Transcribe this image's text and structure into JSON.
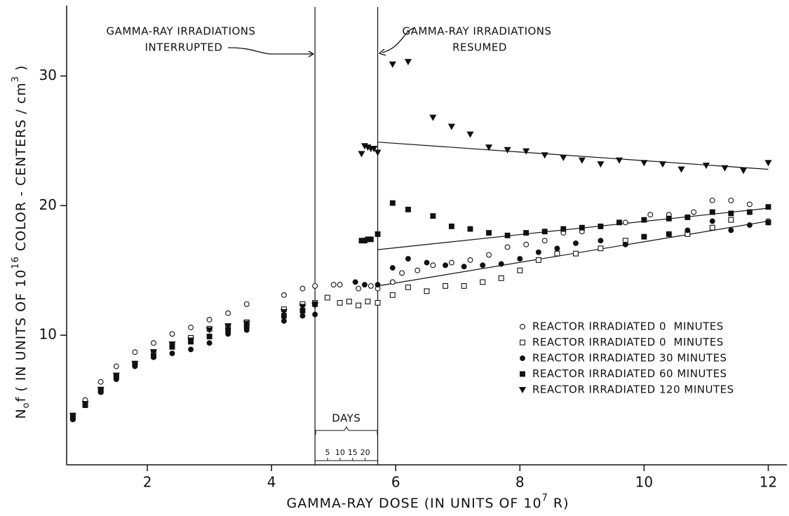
{
  "chart_data": {
    "type": "scatter",
    "xlabel": [
      "GAMMA-RAY DOSE (IN UNITS OF 10",
      "7",
      " R)"
    ],
    "ylabel": [
      "N",
      "o",
      "f ( IN UNITS OF 10",
      "16",
      " COLOR - CENTERS / cm",
      "3",
      " )"
    ],
    "xlim": [
      0.7,
      12.3
    ],
    "ylim": [
      0,
      35
    ],
    "xticks": [
      2,
      4,
      6,
      8,
      10,
      12
    ],
    "yticks": [
      10,
      20,
      30
    ],
    "vlines": [
      4.7,
      5.71
    ],
    "annotations": [
      [
        "GAMMA-RAY IRRADIATIONS",
        "INTERRUPTED"
      ],
      [
        "GAMMA-RAY IRRADIATIONS",
        "RESUMED"
      ]
    ],
    "days_axis": {
      "label": "DAYS",
      "lim": [
        0,
        25
      ],
      "ticks": [
        5,
        10,
        15,
        20
      ]
    },
    "legend": "center right",
    "series": [
      {
        "name": "REACTOR IRRADIATED 0  MINUTES",
        "marker": "open-circle",
        "color": "#111",
        "x": [
          0.8,
          1.0,
          1.25,
          1.5,
          1.8,
          2.1,
          2.4,
          2.7,
          3.0,
          3.3,
          3.6,
          4.2,
          4.5,
          4.7,
          5.0,
          5.1,
          5.4,
          5.6,
          5.71,
          5.95,
          6.1,
          6.35,
          6.6,
          6.9,
          7.2,
          7.5,
          7.8,
          8.1,
          8.4,
          8.7,
          9.0,
          9.3,
          9.7,
          10.1,
          10.4,
          10.8,
          11.1,
          11.4,
          11.7,
          12.0
        ],
        "values": [
          3.8,
          5.0,
          6.4,
          7.6,
          8.7,
          9.4,
          10.1,
          10.6,
          11.2,
          11.7,
          12.4,
          13.1,
          13.6,
          13.8,
          13.9,
          13.9,
          13.6,
          13.8,
          13.6,
          14.1,
          14.8,
          15.0,
          15.4,
          15.6,
          15.8,
          16.2,
          16.8,
          17.0,
          17.3,
          17.9,
          18.0,
          18.4,
          18.7,
          19.3,
          19.3,
          19.5,
          20.4,
          20.4,
          20.1,
          18.8
        ]
      },
      {
        "name": "REACTOR IRRADIATED 0  MINUTES",
        "marker": "open-square",
        "color": "#111",
        "x": [
          0.8,
          1.0,
          1.25,
          1.5,
          1.8,
          2.1,
          2.4,
          2.7,
          3.0,
          3.3,
          3.6,
          4.2,
          4.5,
          4.7,
          4.9,
          5.1,
          5.25,
          5.4,
          5.55,
          5.71,
          5.95,
          6.2,
          6.5,
          6.8,
          7.1,
          7.4,
          7.7,
          8.0,
          8.3,
          8.6,
          8.9,
          9.3,
          9.7,
          10.0,
          10.4,
          10.7,
          11.1,
          11.4,
          12.0
        ],
        "values": [
          3.6,
          4.7,
          5.8,
          6.9,
          7.8,
          8.7,
          9.3,
          9.8,
          10.5,
          10.7,
          11.0,
          12.0,
          12.4,
          12.5,
          12.9,
          12.5,
          12.6,
          12.3,
          12.6,
          12.5,
          13.1,
          13.7,
          13.4,
          13.8,
          13.8,
          14.1,
          14.4,
          15.0,
          15.8,
          16.3,
          16.3,
          16.7,
          17.3,
          17.6,
          17.8,
          17.8,
          18.3,
          18.9,
          18.7
        ]
      },
      {
        "name": "REACTOR IRRADIATED 30 MINUTES",
        "marker": "filled-circle",
        "color": "#111",
        "x": [
          0.8,
          1.0,
          1.25,
          1.5,
          1.8,
          2.1,
          2.4,
          2.7,
          3.0,
          3.3,
          3.6,
          4.2,
          4.5,
          4.7,
          5.35,
          5.5,
          5.71,
          5.95,
          6.2,
          6.5,
          6.8,
          7.1,
          7.4,
          7.7,
          8.0,
          8.3,
          8.6,
          8.9,
          9.3,
          9.7,
          10.0,
          10.4,
          10.7,
          11.1,
          11.4,
          11.7,
          12.0
        ],
        "values": [
          3.5,
          4.6,
          5.6,
          6.6,
          7.6,
          8.3,
          8.6,
          8.9,
          9.4,
          10.1,
          10.4,
          11.1,
          11.5,
          11.6,
          14.1,
          13.9,
          13.9,
          15.2,
          15.9,
          15.6,
          15.4,
          15.3,
          15.4,
          15.5,
          15.9,
          16.4,
          16.7,
          17.1,
          17.3,
          17.0,
          17.6,
          17.8,
          18.1,
          18.8,
          18.1,
          18.5,
          18.7
        ]
      },
      {
        "name": "REACTOR IRRADIATED 60 MINUTES",
        "marker": "filled-square",
        "color": "#111",
        "x": [
          0.8,
          1.0,
          1.25,
          1.5,
          1.8,
          2.1,
          2.4,
          2.7,
          3.0,
          3.3,
          3.6,
          4.2,
          4.5,
          4.7,
          5.45,
          5.5,
          5.55,
          5.6,
          5.71,
          5.95,
          6.2,
          6.6,
          6.9,
          7.2,
          7.5,
          7.8,
          8.1,
          8.4,
          8.7,
          9.0,
          9.3,
          9.6,
          10.0,
          10.4,
          10.7,
          11.1,
          11.4,
          11.7,
          12.0
        ],
        "values": [
          3.7,
          4.6,
          5.7,
          6.8,
          7.8,
          8.4,
          9.1,
          9.5,
          9.9,
          10.4,
          10.7,
          11.5,
          11.9,
          12.4,
          17.3,
          17.3,
          17.4,
          17.4,
          17.8,
          20.2,
          19.7,
          19.2,
          18.4,
          18.2,
          17.9,
          17.7,
          17.9,
          18.0,
          18.2,
          18.3,
          18.4,
          18.7,
          18.9,
          19.0,
          19.1,
          19.5,
          19.4,
          19.5,
          19.9
        ]
      },
      {
        "name": "REACTOR IRRADIATED 120 MINUTES",
        "marker": "filled-triangle-down",
        "color": "#111",
        "x": [
          0.8,
          1.0,
          1.25,
          1.5,
          1.8,
          2.1,
          2.4,
          2.7,
          3.0,
          3.3,
          3.6,
          4.2,
          4.5,
          4.7,
          5.45,
          5.5,
          5.55,
          5.6,
          5.65,
          5.71,
          5.95,
          6.2,
          6.6,
          6.9,
          7.2,
          7.5,
          7.8,
          8.1,
          8.4,
          8.7,
          9.0,
          9.3,
          9.6,
          10.0,
          10.3,
          10.6,
          11.0,
          11.3,
          11.6,
          12.0
        ],
        "values": [
          3.8,
          4.7,
          5.8,
          6.9,
          7.8,
          8.7,
          9.3,
          9.6,
          10.4,
          10.7,
          10.9,
          11.8,
          12.2,
          12.3,
          24.0,
          24.6,
          24.5,
          24.4,
          24.4,
          24.1,
          30.9,
          31.1,
          26.8,
          26.1,
          25.5,
          24.5,
          24.3,
          24.2,
          23.9,
          23.7,
          23.5,
          23.2,
          23.5,
          23.3,
          23.2,
          22.8,
          23.1,
          22.9,
          22.7,
          23.3
        ]
      }
    ],
    "fit_lines": [
      {
        "x": [
          5.71,
          12.0
        ],
        "values": [
          24.9,
          22.8
        ]
      },
      {
        "x": [
          5.71,
          12.0
        ],
        "values": [
          16.6,
          19.8
        ]
      },
      {
        "x": [
          5.71,
          12.0
        ],
        "values": [
          13.8,
          18.8
        ]
      }
    ]
  }
}
